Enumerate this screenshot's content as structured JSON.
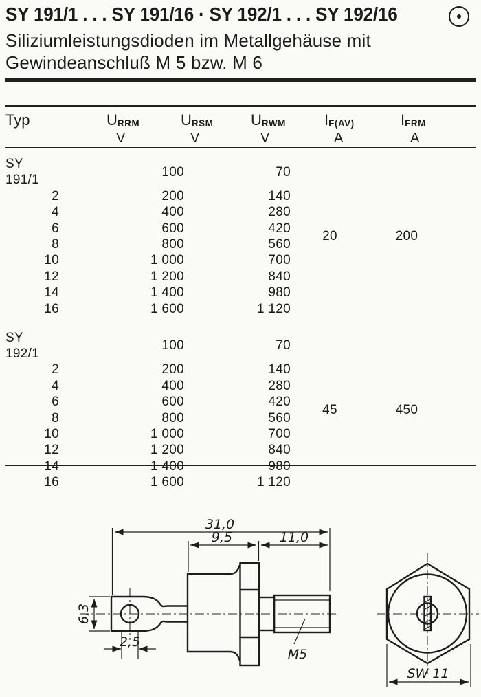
{
  "page": {
    "title": "SY 191/1 . . . SY 191/16  ·  SY 192/1 . . . SY 192/16",
    "subtitle_line1": "Siliziumleistungsdioden im Metallgehäuse mit",
    "subtitle_line2": "Gewindeanschluß M 5 bzw. M 6",
    "logo_icon": "circle-dot-icon"
  },
  "table": {
    "columns": [
      {
        "label": "Typ",
        "sub": "",
        "unit": ""
      },
      {
        "symbol": "U",
        "sub": "RRM",
        "unit": "V"
      },
      {
        "symbol": "U",
        "sub": "RSM",
        "unit": "V"
      },
      {
        "symbol": "U",
        "sub": "RWM",
        "unit": "V"
      },
      {
        "symbol": "I",
        "sub": "F(AV)",
        "unit": "A"
      },
      {
        "symbol": "I",
        "sub": "FRM",
        "unit": "A"
      }
    ],
    "blocks": [
      {
        "name": "SY 191",
        "if_av": "20",
        "ifrm": "200",
        "rows": [
          {
            "typ": "SY 191/1",
            "urrm": "100",
            "urwm": "70"
          },
          {
            "typ": "2",
            "urrm": "200",
            "urwm": "140"
          },
          {
            "typ": "4",
            "urrm": "400",
            "urwm": "280"
          },
          {
            "typ": "6",
            "urrm": "600",
            "urwm": "420"
          },
          {
            "typ": "8",
            "urrm": "800",
            "urwm": "560"
          },
          {
            "typ": "10",
            "urrm": "1 000",
            "urwm": "700"
          },
          {
            "typ": "12",
            "urrm": "1 200",
            "urwm": "840"
          },
          {
            "typ": "14",
            "urrm": "1 400",
            "urwm": "980"
          },
          {
            "typ": "16",
            "urrm": "1 600",
            "urwm": "1 120"
          }
        ]
      },
      {
        "name": "SY 192",
        "if_av": "45",
        "ifrm": "450",
        "rows": [
          {
            "typ": "SY 192/1",
            "urrm": "100",
            "urwm": "70"
          },
          {
            "typ": "2",
            "urrm": "200",
            "urwm": "140"
          },
          {
            "typ": "4",
            "urrm": "400",
            "urwm": "280"
          },
          {
            "typ": "6",
            "urrm": "600",
            "urwm": "420"
          },
          {
            "typ": "8",
            "urrm": "800",
            "urwm": "560"
          },
          {
            "typ": "10",
            "urrm": "1 000",
            "urwm": "700"
          },
          {
            "typ": "12",
            "urrm": "1 200",
            "urwm": "840"
          },
          {
            "typ": "14",
            "urrm": "1 400",
            "urwm": "980"
          },
          {
            "typ": "16",
            "urrm": "1 600",
            "urwm": "1 120"
          }
        ]
      }
    ]
  },
  "drawing": {
    "dim_overall": "31,0",
    "dim_case": "9,5",
    "dim_stud": "11,0",
    "dim_tab": "6,3",
    "dim_hole": "2,5",
    "thread_label": "M5",
    "wrench_label": "SW 11"
  }
}
